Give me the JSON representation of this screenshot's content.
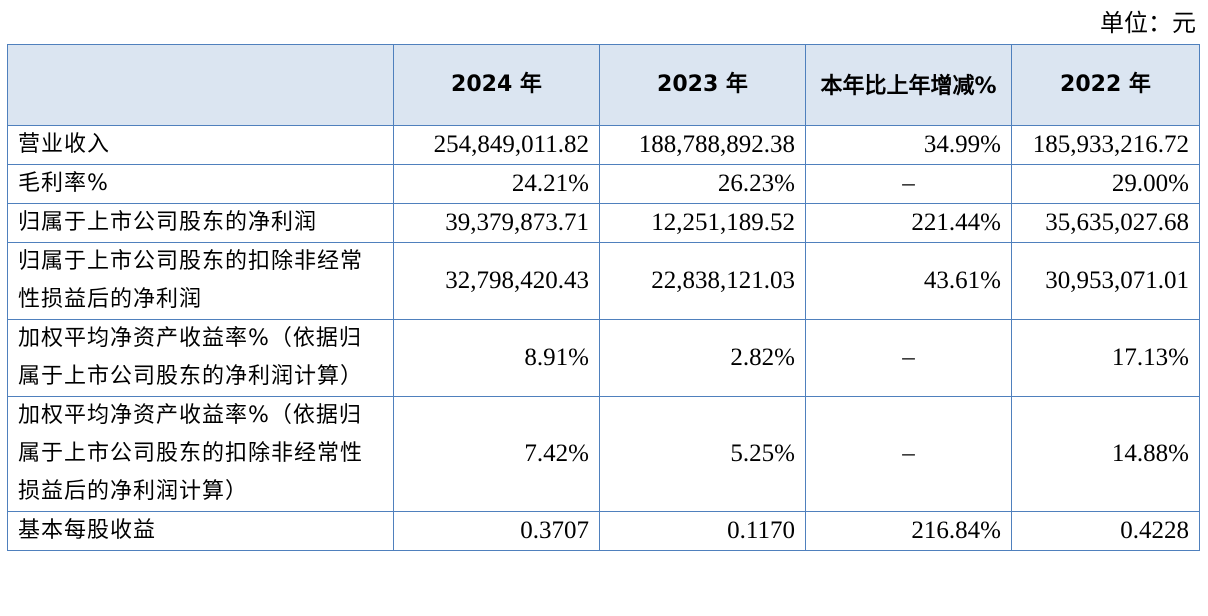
{
  "unit_label": "单位：元",
  "header": {
    "col0": "",
    "col1": "2024 年",
    "col2": "2023 年",
    "col3": "本年比上年增减%",
    "col4": "2022 年"
  },
  "rows": [
    {
      "label": "营业收入",
      "v2024": "254,849,011.82",
      "v2023": "188,788,892.38",
      "change": "34.99%",
      "v2022": "185,933,216.72"
    },
    {
      "label": "毛利率%",
      "v2024": "24.21%",
      "v2023": "26.23%",
      "change": "–",
      "v2022": "29.00%"
    },
    {
      "label": "归属于上市公司股东的净利润",
      "v2024": "39,379,873.71",
      "v2023": "12,251,189.52",
      "change": "221.44%",
      "v2022": "35,635,027.68"
    },
    {
      "label": "归属于上市公司股东的扣除非经常性损益后的净利润",
      "v2024": "32,798,420.43",
      "v2023": "22,838,121.03",
      "change": "43.61%",
      "v2022": "30,953,071.01"
    },
    {
      "label": "加权平均净资产收益率%（依据归属于上市公司股东的净利润计算）",
      "v2024": "8.91%",
      "v2023": "2.82%",
      "change": "–",
      "v2022": "17.13%"
    },
    {
      "label": "加权平均净资产收益率%（依据归属于上市公司股东的扣除非经常性损益后的净利润计算）",
      "v2024": "7.42%",
      "v2023": "5.25%",
      "change": "–",
      "v2022": "14.88%"
    },
    {
      "label": "基本每股收益",
      "v2024": "0.3707",
      "v2023": "0.1170",
      "change": "216.84%",
      "v2022": "0.4228"
    }
  ]
}
